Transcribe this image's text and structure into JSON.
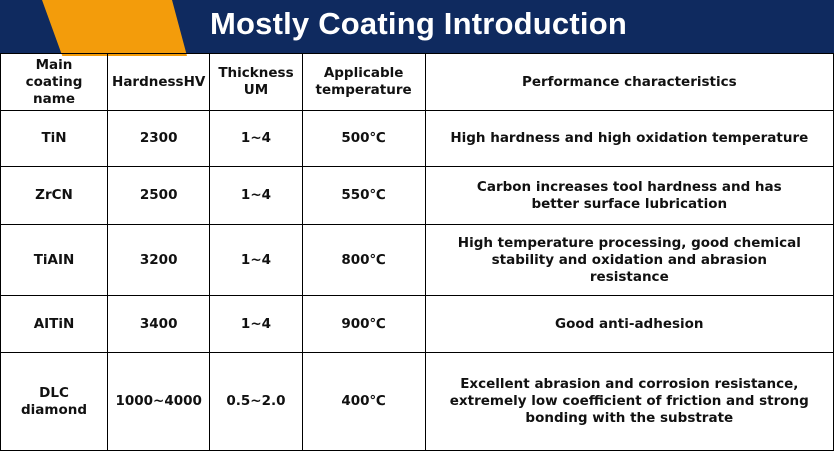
{
  "title": "Mostly Coating Introduction",
  "headers": [
    "Main coating name",
    "HardnessHV",
    "Thickness UM",
    "Applicable temperature",
    "Performance characteristics"
  ],
  "rows": [
    {
      "name": "TiN",
      "hardness": "2300",
      "thickness": "1~4",
      "temperature": "500℃",
      "performance": "High hardness and high oxidation temperature"
    },
    {
      "name": "ZrCN",
      "hardness": "2500",
      "thickness": "1~4",
      "temperature": "550℃",
      "performance": "Carbon increases tool hardness and has better surface lubrication"
    },
    {
      "name": "TiAIN",
      "hardness": "3200",
      "thickness": "1~4",
      "temperature": "800℃",
      "performance": "High temperature processing, good chemical stability and oxidation and abrasion resistance"
    },
    {
      "name": "AITiN",
      "hardness": "3400",
      "thickness": "1~4",
      "temperature": "900℃",
      "performance": "Good anti-adhesion"
    },
    {
      "name": "DLC diamond",
      "hardness": "1000~4000",
      "thickness": "0.5~2.0",
      "temperature": "400℃",
      "performance": "Excellent abrasion and corrosion resistance, extremely low coefficient of friction and strong bonding with the substrate"
    }
  ]
}
